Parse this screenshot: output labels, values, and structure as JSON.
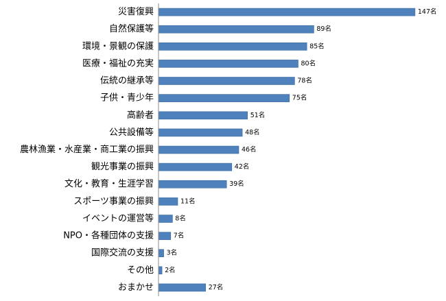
{
  "chart_data": {
    "type": "bar",
    "orientation": "horizontal",
    "categories": [
      "災害復興",
      "自然保護等",
      "環境・景観の保護",
      "医療・福祉の充実",
      "伝統の継承等",
      "子供・青少年",
      "高齢者",
      "公共設備等",
      "農林漁業・水産業・商工業の振興",
      "観光事業の振興",
      "文化・教育・生涯学習",
      "スポーツ事業の振興",
      "イベントの運営等",
      "NPO・各種団体の支援",
      "国際交流の支援",
      "その他",
      "おまかせ"
    ],
    "values": [
      147,
      89,
      85,
      80,
      78,
      75,
      51,
      48,
      46,
      42,
      39,
      11,
      8,
      7,
      3,
      2,
      27
    ],
    "value_labels": [
      "147名",
      "89名",
      "85名",
      "80名",
      "78名",
      "75名",
      "51名",
      "48名",
      "46名",
      "42名",
      "39名",
      "11名",
      "8名",
      "7名",
      "3名",
      "2名",
      "27名"
    ],
    "xlim": [
      0,
      160
    ],
    "grid": false,
    "colors": {
      "bar": "#4F81BD",
      "bar_edge": "#3A6A9F",
      "axis": "#888888"
    }
  }
}
